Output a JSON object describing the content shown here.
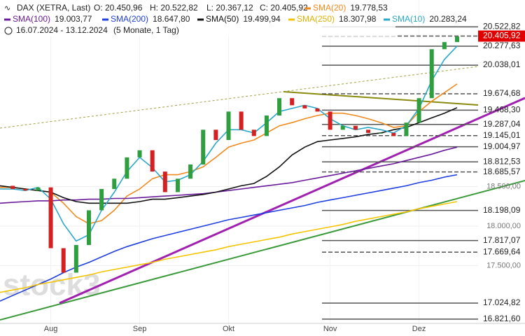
{
  "header": {
    "symbol": "DAX (XETRA, Last)",
    "ohlc": [
      "O: 20.450,96",
      "H: 20.522,82",
      "L: 20.367,12",
      "C: 20.405,92"
    ],
    "period": "16.07.2024 - 13.12.2024",
    "interval": "(5 Monate, 1 Tag)",
    "watermark": "stock3"
  },
  "chart_data": {
    "type": "line",
    "categories": [
      null,
      null,
      null,
      null,
      "Aug",
      null,
      null,
      null,
      null,
      null,
      null,
      "Sep",
      null,
      null,
      null,
      null,
      null,
      null,
      "Okt",
      null,
      null,
      null,
      null,
      null,
      null,
      null,
      "Nov",
      null,
      null,
      null,
      null,
      null,
      null,
      "Dez",
      null,
      null,
      null
    ],
    "values": [
      18510,
      18470,
      18450,
      18490,
      17720,
      17410,
      17760,
      18200,
      18470,
      18600,
      18870,
      18960,
      18690,
      18430,
      18600,
      18780,
      19220,
      19090,
      19450,
      19220,
      19140,
      19400,
      19620,
      19530,
      19490,
      19450,
      19220,
      19270,
      19220,
      19180,
      19180,
      19140,
      19310,
      19620,
      20240,
      20330,
      20400
    ],
    "up_color": "#2e9e3e",
    "down_color": "#d42020",
    "series": [
      {
        "name": "SMA(20)",
        "last_label": "19.778,53",
        "color": "#f08a1e",
        "values": [
          18490,
          18490,
          18470,
          18450,
          18430,
          18290,
          18120,
          18030,
          18070,
          18200,
          18380,
          18470,
          18600,
          18650,
          18650,
          18690,
          18750,
          18870,
          19000,
          19050,
          19090,
          19180,
          19270,
          19310,
          19360,
          19400,
          19430,
          19430,
          19400,
          19360,
          19310,
          19250,
          19270,
          19450,
          19580,
          19690,
          19800
        ]
      },
      {
        "name": "SMA(100)",
        "last_label": "19.003,77",
        "color": "#6a1b9a",
        "values": [
          18290,
          18300,
          18310,
          18320,
          18320,
          18330,
          18330,
          18340,
          18340,
          18350,
          18350,
          18360,
          18370,
          18380,
          18390,
          18400,
          18410,
          18430,
          18450,
          18470,
          18490,
          18510,
          18530,
          18550,
          18580,
          18610,
          18640,
          18670,
          18700,
          18730,
          18760,
          18790,
          18830,
          18870,
          18910,
          18960,
          19000
        ]
      },
      {
        "name": "SMA(200)",
        "last_label": "18.647,80",
        "color": "#1e3ee0",
        "values": [
          17050,
          17120,
          17190,
          17260,
          17330,
          17410,
          17480,
          17540,
          17610,
          17680,
          17740,
          17790,
          17840,
          17880,
          17920,
          17960,
          18000,
          18040,
          18080,
          18110,
          18140,
          18170,
          18200,
          18230,
          18260,
          18300,
          18330,
          18360,
          18390,
          18420,
          18450,
          18480,
          18510,
          18550,
          18580,
          18620,
          18650
        ]
      },
      {
        "name": "SMA(50)",
        "last_label": "19.499,94",
        "color": "#111111",
        "values": [
          18510,
          18490,
          18470,
          18450,
          18430,
          18360,
          18310,
          18290,
          18290,
          18290,
          18290,
          18310,
          18340,
          18340,
          18360,
          18380,
          18400,
          18430,
          18470,
          18510,
          18540,
          18630,
          18750,
          18900,
          19000,
          19070,
          19090,
          19110,
          19130,
          19160,
          19180,
          19220,
          19250,
          19310,
          19370,
          19430,
          19500
        ]
      },
      {
        "name": "SMA(250)",
        "last_label": "18.307,98",
        "color": "#f5c400",
        "values": [
          17160,
          17190,
          17220,
          17260,
          17290,
          17320,
          17350,
          17380,
          17420,
          17450,
          17480,
          17510,
          17540,
          17580,
          17610,
          17640,
          17670,
          17700,
          17740,
          17770,
          17800,
          17830,
          17860,
          17900,
          17930,
          17960,
          17990,
          18020,
          18060,
          18090,
          18120,
          18150,
          18180,
          18220,
          18250,
          18280,
          18310
        ]
      },
      {
        "name": "SMA(10)",
        "last_label": "20.283,24",
        "color": "#2aa8c8",
        "values": [
          18470,
          18470,
          18450,
          18490,
          18340,
          18030,
          17810,
          17890,
          18200,
          18430,
          18690,
          18870,
          18740,
          18560,
          18580,
          18650,
          18820,
          19050,
          19220,
          19220,
          19180,
          19310,
          19450,
          19490,
          19530,
          19490,
          19360,
          19270,
          19220,
          19250,
          19220,
          19180,
          19270,
          19490,
          19840,
          20110,
          20280
        ]
      }
    ],
    "ylim": [
      16608,
      20863
    ],
    "yticks": [
      {
        "value": 17500,
        "label": "17.500,00"
      },
      {
        "value": 18000,
        "label": "18.000,00"
      },
      {
        "value": 18500,
        "label": "18.500,00"
      }
    ],
    "levels": [
      {
        "value": 20522.82,
        "label": "20.522,82"
      },
      {
        "value": 20405.92,
        "label": "20.405,92",
        "color": "#e00000"
      },
      {
        "value": 20277.63,
        "label": "20.277,63"
      },
      {
        "value": 20038.01,
        "label": "20.038,01"
      },
      {
        "value": 19674.68,
        "label": "19.674,68"
      },
      {
        "value": 19468.3,
        "label": "19.468,30"
      },
      {
        "value": 19287.04,
        "label": "19.287,04"
      },
      {
        "value": 19145.01,
        "label": "19.145,01"
      },
      {
        "value": 19004.97,
        "label": "19.004,97"
      },
      {
        "value": 18812.53,
        "label": "18.812,53"
      },
      {
        "value": 18685.57,
        "label": "18.685,57"
      },
      {
        "value": 18198.09,
        "label": "18.198,09"
      },
      {
        "value": 17817.07,
        "label": "17.817,07"
      },
      {
        "value": 17669.64,
        "label": "17.669,64"
      },
      {
        "value": 17024.82,
        "label": "17.024,82"
      },
      {
        "value": 16821.6,
        "label": "16.821,60"
      }
    ]
  }
}
